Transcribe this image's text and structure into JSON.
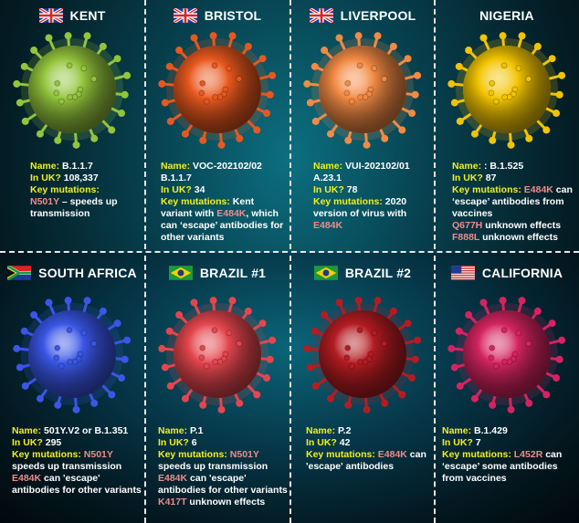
{
  "colors": {
    "label": "#f0f020",
    "mutation": "#f08a8a",
    "text": "#ffffff"
  },
  "variants": [
    {
      "title": "KENT",
      "flag": "uk-flag",
      "virus_color": "#93c43c",
      "lines": [
        [
          {
            "t": "Name: ",
            "k": "label"
          },
          {
            "t": "B.1.1.7",
            "k": "text"
          }
        ],
        [
          {
            "t": "In UK? ",
            "k": "label"
          },
          {
            "t": "108,337",
            "k": "text"
          }
        ],
        [
          {
            "t": "Key mutations:",
            "k": "label"
          }
        ],
        [
          {
            "t": "N501Y",
            "k": "mut"
          },
          {
            "t": " – speeds up",
            "k": "text"
          }
        ],
        [
          {
            "t": "transmission",
            "k": "text"
          }
        ]
      ]
    },
    {
      "title": "BRISTOL",
      "flag": "uk-flag",
      "virus_color": "#e8581e",
      "lines": [
        [
          {
            "t": "Name: ",
            "k": "label"
          },
          {
            "t": "VOC-202102/02",
            "k": "text"
          }
        ],
        [
          {
            "t": "B.1.1.7",
            "k": "text"
          }
        ],
        [
          {
            "t": "In UK? ",
            "k": "label"
          },
          {
            "t": "34",
            "k": "text"
          }
        ],
        [
          {
            "t": "Key mutations: ",
            "k": "label"
          },
          {
            "t": "Kent",
            "k": "text"
          }
        ],
        [
          {
            "t": "variant with ",
            "k": "text"
          },
          {
            "t": "E484K",
            "k": "mut"
          },
          {
            "t": ", which",
            "k": "text"
          }
        ],
        [
          {
            "t": "can ‘escape’ antibodies for",
            "k": "text"
          }
        ],
        [
          {
            "t": "other variants",
            "k": "text"
          }
        ]
      ]
    },
    {
      "title": "LIVERPOOL",
      "flag": "uk-flag",
      "virus_color": "#f28a44",
      "lines": [
        [
          {
            "t": "Name: ",
            "k": "label"
          },
          {
            "t": "VUI-202102/01",
            "k": "text"
          }
        ],
        [
          {
            "t": "A.23.1",
            "k": "text"
          }
        ],
        [
          {
            "t": "In UK? ",
            "k": "label"
          },
          {
            "t": "78",
            "k": "text"
          }
        ],
        [
          {
            "t": "Key mutations: ",
            "k": "label"
          },
          {
            "t": "2020",
            "k": "text"
          }
        ],
        [
          {
            "t": "version of virus with",
            "k": "text"
          }
        ],
        [
          {
            "t": "E484K",
            "k": "mut"
          }
        ]
      ]
    },
    {
      "title": "NIGERIA",
      "flag": "",
      "virus_color": "#f2c400",
      "lines": [
        [
          {
            "t": "Name: ",
            "k": "label"
          },
          {
            "t": ": B.1.525",
            "k": "text"
          }
        ],
        [
          {
            "t": "In UK? ",
            "k": "label"
          },
          {
            "t": "87",
            "k": "text"
          }
        ],
        [
          {
            "t": "Key mutations: ",
            "k": "label"
          },
          {
            "t": "E484K",
            "k": "mut"
          },
          {
            "t": " can",
            "k": "text"
          }
        ],
        [
          {
            "t": "‘escape’ antibodies from",
            "k": "text"
          }
        ],
        [
          {
            "t": "vaccines",
            "k": "text"
          }
        ],
        [
          {
            "t": "Q677H",
            "k": "mut"
          },
          {
            "t": " unknown effects",
            "k": "text"
          }
        ],
        [
          {
            "t": "F888L",
            "k": "mut"
          },
          {
            "t": " unknown effects",
            "k": "text"
          }
        ]
      ]
    },
    {
      "title": "SOUTH AFRICA",
      "flag": "south-africa-flag",
      "virus_color": "#3a56e6",
      "lines": [
        [
          {
            "t": "Name: ",
            "k": "label"
          },
          {
            "t": "501Y.V2 or B.1.351",
            "k": "text"
          }
        ],
        [
          {
            "t": "In UK? ",
            "k": "label"
          },
          {
            "t": "295",
            "k": "text"
          }
        ],
        [
          {
            "t": "Key mutations: ",
            "k": "label"
          },
          {
            "t": "N501Y",
            "k": "mut"
          }
        ],
        [
          {
            "t": "speeds up transmission",
            "k": "text"
          }
        ],
        [
          {
            "t": "E484K",
            "k": "mut"
          },
          {
            "t": " can 'escape'",
            "k": "text"
          }
        ],
        [
          {
            "t": "antibodies for other variants",
            "k": "text"
          }
        ]
      ]
    },
    {
      "title": "BRAZIL #1",
      "flag": "brazil-flag",
      "virus_color": "#e4464e",
      "lines": [
        [
          {
            "t": "Name: ",
            "k": "label"
          },
          {
            "t": "P.1",
            "k": "text"
          }
        ],
        [
          {
            "t": "In UK? ",
            "k": "label"
          },
          {
            "t": "6",
            "k": "text"
          }
        ],
        [
          {
            "t": "Key mutations: ",
            "k": "label"
          },
          {
            "t": "N501Y",
            "k": "mut"
          }
        ],
        [
          {
            "t": "speeds up transmission",
            "k": "text"
          }
        ],
        [
          {
            "t": "E484K",
            "k": "mut"
          },
          {
            "t": " can 'escape'",
            "k": "text"
          }
        ],
        [
          {
            "t": "antibodies for other variants",
            "k": "text"
          }
        ],
        [
          {
            "t": "K417T",
            "k": "mut"
          },
          {
            "t": " unknown effects",
            "k": "text"
          }
        ]
      ]
    },
    {
      "title": "BRAZIL #2",
      "flag": "brazil-flag",
      "virus_color": "#b41c22",
      "lines": [
        [
          {
            "t": "Name: ",
            "k": "label"
          },
          {
            "t": "P.2",
            "k": "text"
          }
        ],
        [
          {
            "t": "In UK? ",
            "k": "label"
          },
          {
            "t": "42",
            "k": "text"
          }
        ],
        [
          {
            "t": "Key mutations: ",
            "k": "label"
          },
          {
            "t": "E484K",
            "k": "mut"
          },
          {
            "t": " can",
            "k": "text"
          }
        ],
        [
          {
            "t": "'escape' antibodies",
            "k": "text"
          }
        ]
      ]
    },
    {
      "title": "CALIFORNIA",
      "flag": "usa-flag",
      "virus_color": "#d42460",
      "lines": [
        [
          {
            "t": "Name: ",
            "k": "label"
          },
          {
            "t": "B.1.429",
            "k": "text"
          }
        ],
        [
          {
            "t": "In UK? ",
            "k": "label"
          },
          {
            "t": "7",
            "k": "text"
          }
        ],
        [
          {
            "t": "Key mutations: ",
            "k": "label"
          },
          {
            "t": "L452R",
            "k": "mut"
          },
          {
            "t": " can",
            "k": "text"
          }
        ],
        [
          {
            "t": "‘escape’ some antibodies",
            "k": "text"
          }
        ],
        [
          {
            "t": "from vaccines",
            "k": "text"
          }
        ]
      ]
    }
  ]
}
